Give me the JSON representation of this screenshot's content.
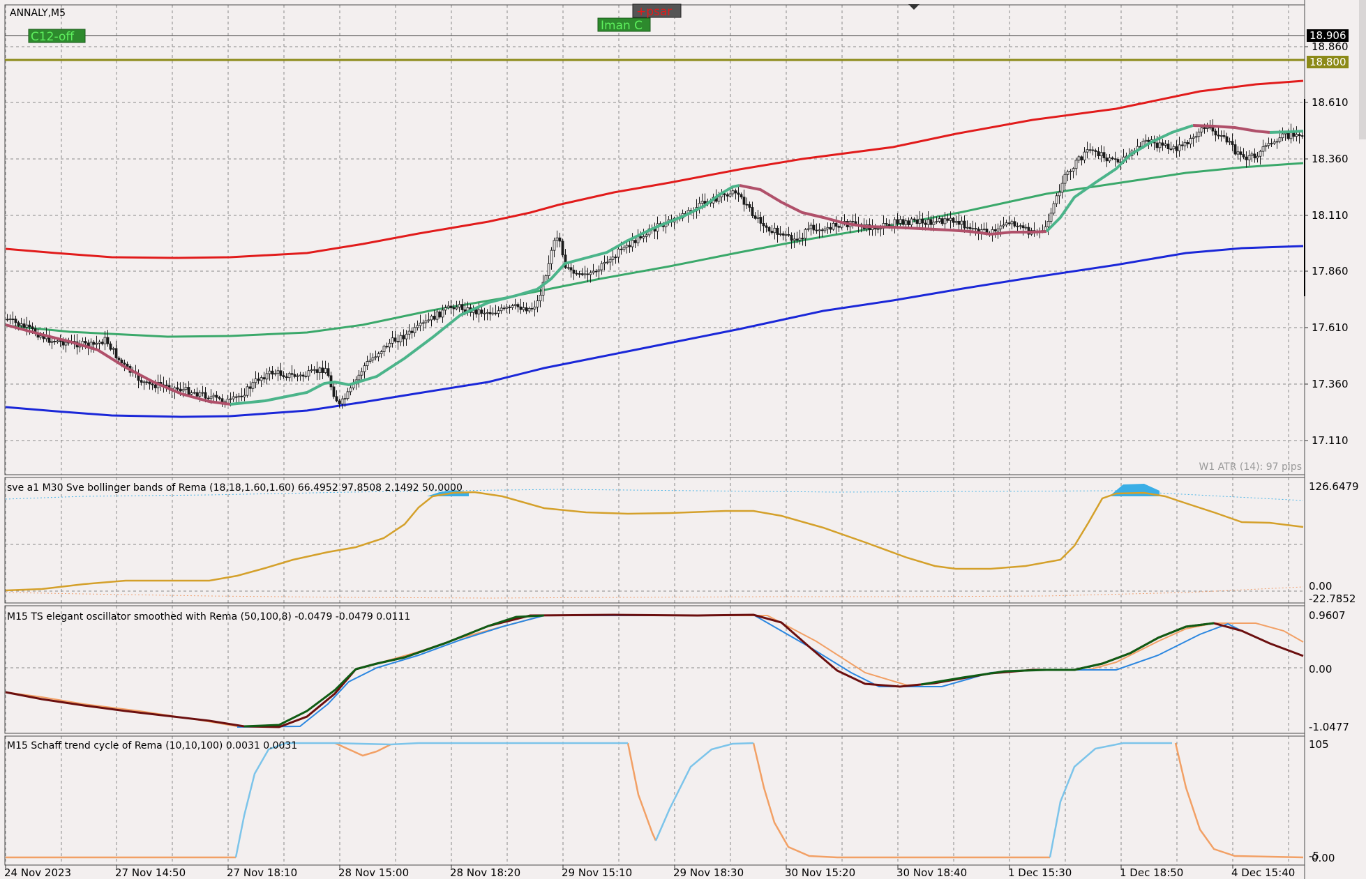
{
  "window": {
    "symbol_label": "ANNALY,M5",
    "badges": {
      "psar": "+psar",
      "iman": "Iman C",
      "c12": "C12-off"
    },
    "atr_label": "W1 ATR (14): 97 pips",
    "colors": {
      "background": "#f3efef",
      "grid": "#8a8a8a",
      "candle": "#1a1a1a",
      "upper_band": "#e11b1b",
      "lower_band": "#1a27d8",
      "mid_line": "#3aa86a",
      "rema": "#b0506a",
      "level_line": "#8c8a18"
    }
  },
  "price_axis": {
    "ticks": [
      "18.860",
      "18.610",
      "18.360",
      "18.110",
      "17.860",
      "17.610",
      "17.360",
      "17.110"
    ],
    "current_price": "18.906",
    "level_price": "18.800"
  },
  "time_axis": {
    "ticks": [
      "24 Nov 2023",
      "27 Nov 14:50",
      "27 Nov 18:10",
      "28 Nov 15:00",
      "28 Nov 18:20",
      "29 Nov 15:10",
      "29 Nov 18:30",
      "30 Nov 15:20",
      "30 Nov 18:40",
      "1 Dec 15:30",
      "1 Dec 18:50",
      "4 Dec 15:40"
    ]
  },
  "panes": {
    "bollinger": {
      "title": "sve a1 M30 Sve bollinger bands of Rema (18,18,1.60,1.60) 66.4952 97.8508 2.1492 50.0000",
      "ticks": [
        "126.6479",
        "0.00",
        "-22.7852"
      ]
    },
    "elegant": {
      "title": "M15 TS elegant oscillator smoothed with Rema (50,100,8) -0.0479 -0.0479 0.0111",
      "ticks": [
        "0.9607",
        "0.00",
        "-1.0477"
      ]
    },
    "schaff": {
      "title": "M15 Schaff trend cycle of Rema (10,10,100) 0.0031 0.0031",
      "ticks": [
        "105",
        "-5",
        "0.00"
      ]
    }
  }
}
